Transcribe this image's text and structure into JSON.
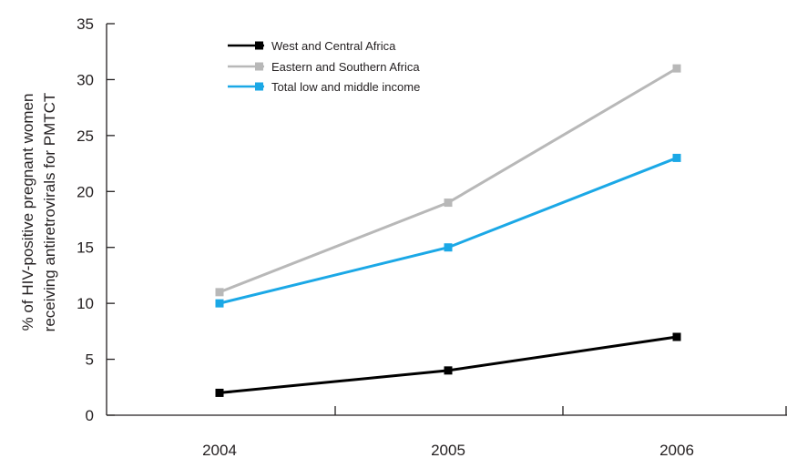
{
  "chart_data": {
    "type": "line",
    "title": "",
    "ylabel_lines": [
      "% of HIV-positive pregnant women",
      "receiving antiretrovirals for PMTCT"
    ],
    "xlabel": "",
    "x": [
      "2004",
      "2005",
      "2006"
    ],
    "ylim": [
      0,
      35
    ],
    "yticks": [
      0,
      5,
      10,
      15,
      20,
      25,
      30,
      35
    ],
    "grid": false,
    "legend_position": "top-left",
    "series": [
      {
        "name": "West and Central Africa",
        "values": [
          2,
          4,
          7
        ],
        "color": "#000000"
      },
      {
        "name": "Eastern and Southern Africa",
        "values": [
          11,
          19,
          31
        ],
        "color": "#b8b8b8"
      },
      {
        "name": "Total low and middle income",
        "values": [
          10,
          15,
          23
        ],
        "color": "#1ba8e6"
      }
    ]
  }
}
